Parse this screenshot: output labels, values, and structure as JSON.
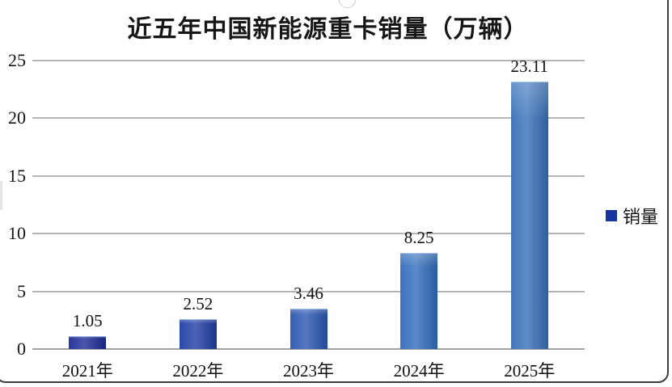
{
  "title": "近五年中国新能源重卡销量（万辆）",
  "legend": {
    "label": "销量",
    "marker_color": "#17349e"
  },
  "chart_data": {
    "type": "bar",
    "title": "近五年中国新能源重卡销量（万辆）",
    "categories": [
      "2021年",
      "2022年",
      "2023年",
      "2024年",
      "2025年"
    ],
    "series": [
      {
        "name": "销量",
        "values": [
          1.05,
          2.52,
          3.46,
          8.25,
          23.11
        ]
      }
    ],
    "data_labels": [
      "1.05",
      "2.52",
      "3.46",
      "8.25",
      "23.11"
    ],
    "xlabel": "",
    "ylabel": "",
    "ylim": [
      0,
      25
    ],
    "yticks": [
      0,
      5,
      10,
      15,
      20,
      25
    ],
    "grid": true,
    "legend_position": "center-right",
    "bar_colors": [
      "#1b2b96",
      "#1e3da4",
      "#2a55b2",
      "#2f6cba",
      "#356fb8"
    ]
  },
  "colors": {
    "gridline": "#b4b4b4",
    "axis_line": "#a2a2a2",
    "text": "#111111",
    "frame_border": "#3b3b3b",
    "background": "#ffffff"
  }
}
